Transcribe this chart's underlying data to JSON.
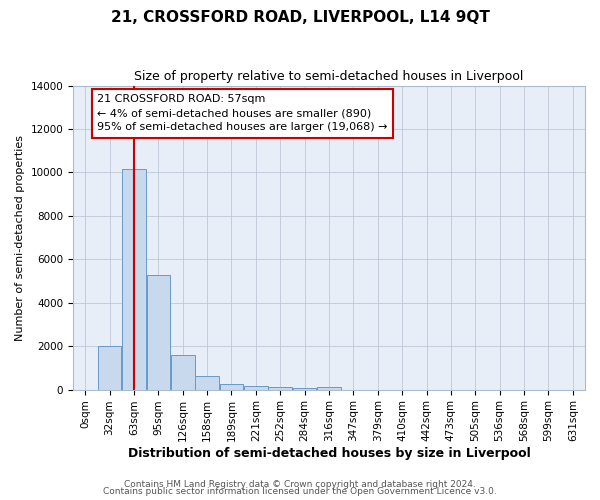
{
  "title": "21, CROSSFORD ROAD, LIVERPOOL, L14 9QT",
  "subtitle": "Size of property relative to semi-detached houses in Liverpool",
  "xlabel": "Distribution of semi-detached houses by size in Liverpool",
  "ylabel": "Number of semi-detached properties",
  "bar_labels": [
    "0sqm",
    "32sqm",
    "63sqm",
    "95sqm",
    "126sqm",
    "158sqm",
    "189sqm",
    "221sqm",
    "252sqm",
    "284sqm",
    "316sqm",
    "347sqm",
    "379sqm",
    "410sqm",
    "442sqm",
    "473sqm",
    "505sqm",
    "536sqm",
    "568sqm",
    "599sqm",
    "631sqm"
  ],
  "bar_values": [
    0,
    2000,
    10150,
    5275,
    1600,
    625,
    270,
    175,
    130,
    90,
    110,
    0,
    0,
    0,
    0,
    0,
    0,
    0,
    0,
    0,
    0
  ],
  "bar_color": "#c9d9ed",
  "bar_edge_color": "#6699cc",
  "property_line_x": 2.0,
  "annotation_text": "21 CROSSFORD ROAD: 57sqm\n← 4% of semi-detached houses are smaller (890)\n95% of semi-detached houses are larger (19,068) →",
  "annotation_box_color": "#ffffff",
  "annotation_box_edge_color": "#cc0000",
  "vline_color": "#cc0000",
  "ylim": [
    0,
    14000
  ],
  "yticks": [
    0,
    2000,
    4000,
    6000,
    8000,
    10000,
    12000,
    14000
  ],
  "grid_color": "#c0c8d8",
  "bg_color": "#e8eef8",
  "fig_bg_color": "#ffffff",
  "footer1": "Contains HM Land Registry data © Crown copyright and database right 2024.",
  "footer2": "Contains public sector information licensed under the Open Government Licence v3.0.",
  "title_fontsize": 11,
  "subtitle_fontsize": 9,
  "xlabel_fontsize": 9,
  "ylabel_fontsize": 8,
  "tick_fontsize": 7.5,
  "annotation_fontsize": 8,
  "footer_fontsize": 6.5
}
